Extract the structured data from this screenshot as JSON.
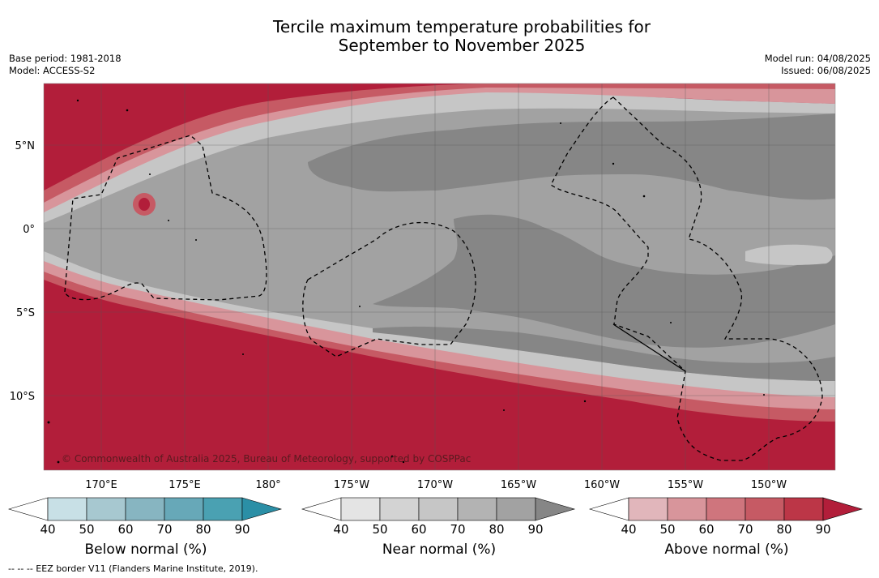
{
  "title": {
    "line1": "Tercile maximum temperature probabilities for",
    "line2": "September to November 2025"
  },
  "meta_left": {
    "base_period": "Base period: 1981-2018",
    "model": "Model: ACCESS-S2"
  },
  "meta_right": {
    "model_run": "Model run: 04/08/2025",
    "issued": "Issued: 06/08/2025"
  },
  "map": {
    "lat_labels": [
      "5°N",
      "0°",
      "5°S",
      "10°S"
    ],
    "lon_labels": [
      "170°E",
      "175°E",
      "180°",
      "175°W",
      "170°W",
      "165°W",
      "160°W",
      "155°W",
      "150°W"
    ],
    "copyright": "© Commonwealth of Australia 2025, Bureau of Meteorology, supported by COSPPac"
  },
  "colorbars": [
    {
      "name": "Below normal (%)",
      "ticks": [
        "40",
        "50",
        "60",
        "70",
        "80",
        "90"
      ],
      "colors": [
        "#ffffff",
        "#c8e0e6",
        "#a7c8d0",
        "#87b5c1",
        "#67a8b8",
        "#4aa1b2",
        "#2b8fa6"
      ]
    },
    {
      "name": "Near normal (%)",
      "ticks": [
        "40",
        "50",
        "60",
        "70",
        "80",
        "90"
      ],
      "colors": [
        "#ffffff",
        "#e4e4e4",
        "#d3d3d3",
        "#c6c6c6",
        "#b3b3b3",
        "#a2a2a2",
        "#868686"
      ]
    },
    {
      "name": "Above normal (%)",
      "ticks": [
        "40",
        "50",
        "60",
        "70",
        "80",
        "90"
      ],
      "colors": [
        "#ffffff",
        "#e1b6bb",
        "#d8959b",
        "#cf757d",
        "#c65a64",
        "#bc3647",
        "#b21e3a"
      ]
    }
  ],
  "footnote": "-- -- -- EEZ border V11 (Flanders Marine Institute, 2019).",
  "colors": {
    "red_dark": "#b21e3a",
    "grey_dark": "#868686",
    "grey_mid": "#a2a2a2"
  }
}
